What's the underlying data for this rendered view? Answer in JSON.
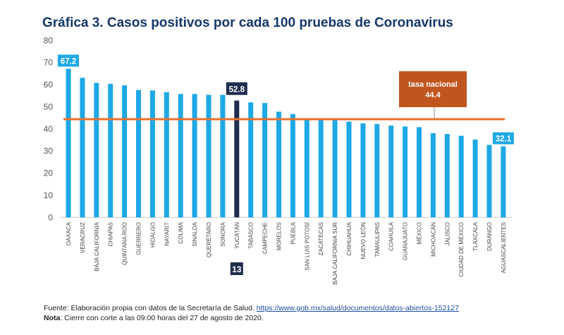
{
  "chart_data": {
    "type": "bar",
    "title": "Gráfica 3. Casos positivos por cada 100 pruebas de Coronavirus",
    "xlabel": "",
    "ylabel": "",
    "ylim": [
      0,
      80
    ],
    "yticks": [
      0,
      10,
      20,
      30,
      40,
      50,
      60,
      70,
      80
    ],
    "grid": false,
    "categories": [
      "OAXACA",
      "VERACRUZ",
      "BAJA CALIFORNIA",
      "CHIAPAS",
      "QUINTANA ROO",
      "GUERRERO",
      "HIDALGO",
      "NAYARIT",
      "COLIMA",
      "SINALOA",
      "QUERÉTARO",
      "SONORA",
      "YUCATÁN",
      "TABASCO",
      "CAMPECHE",
      "MORELOS",
      "PUEBLA",
      "SAN LUIS POTOSÍ",
      "ZACATECAS",
      "BAJA CALIFORNIA SUR",
      "CHIHUAHUA",
      "NUEVO LEÓN",
      "TAMAULIPAS",
      "COAHUILA",
      "GUANAJUATO",
      "MÉXICO",
      "MICHOACÁN",
      "JALISCO",
      "CIUDAD DE MÉXICO",
      "TLAXCALA",
      "DURANGO",
      "AGUASCALIENTES"
    ],
    "values": [
      67.2,
      63.1,
      60.8,
      60.4,
      59.7,
      57.6,
      57.4,
      56.6,
      55.8,
      55.8,
      55.4,
      55.4,
      52.8,
      52.0,
      51.7,
      47.8,
      46.7,
      44.5,
      44.4,
      44.4,
      43.3,
      42.5,
      42.2,
      41.5,
      41.1,
      40.8,
      38.1,
      37.7,
      36.9,
      35.2,
      32.8,
      32.1
    ],
    "highlight": {
      "category": "YUCATÁN",
      "label": "52.8",
      "rank": "13"
    },
    "data_labels": [
      {
        "category": "OAXACA",
        "label": "67.2"
      },
      {
        "category": "AGUASCALIENTES",
        "label": "32.1"
      }
    ],
    "reference_line": {
      "value": 44.4,
      "label": "tasa nacional",
      "value_label": "44.4"
    },
    "colors": {
      "bar": "#1ea8e6",
      "highlight": "#1f2d4e",
      "reference_line": "#e9712d",
      "reference_box": "#c0561f",
      "title": "#14386b"
    }
  },
  "footer": {
    "source_prefix": "Fuente: Elaboración propia con datos de la Secretaría de Salud. ",
    "source_link": "https://www.gob.mx/salud/documentos/datos-abiertos-152127",
    "note_label": "Nota",
    "note_text": ": Cierre con corte a las 09:00 horas del 27 de agosto de 2020."
  }
}
